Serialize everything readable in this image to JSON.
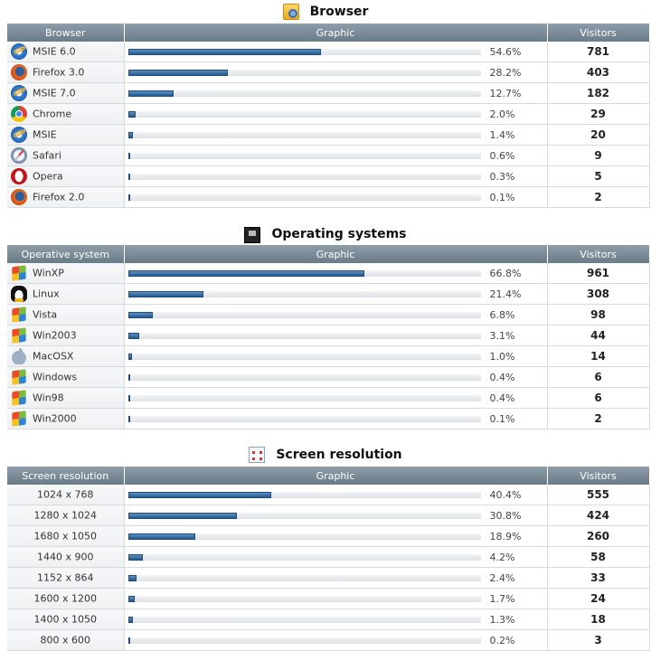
{
  "sections": {
    "browser": {
      "title": "Browser",
      "icon": "browser-icon",
      "headers": {
        "name": "Browser",
        "graphic": "Graphic",
        "visitors": "Visitors"
      },
      "rows": [
        {
          "name": "MSIE 6.0",
          "icon": "ie-icon",
          "percent": "54.6%",
          "visitors": "781",
          "fraction": 0.546
        },
        {
          "name": "Firefox 3.0",
          "icon": "firefox-icon",
          "percent": "28.2%",
          "visitors": "403",
          "fraction": 0.282
        },
        {
          "name": "MSIE 7.0",
          "icon": "ie-icon",
          "percent": "12.7%",
          "visitors": "182",
          "fraction": 0.127
        },
        {
          "name": "Chrome",
          "icon": "chrome-icon",
          "percent": "2.0%",
          "visitors": "29",
          "fraction": 0.02
        },
        {
          "name": "MSIE",
          "icon": "ie-icon",
          "percent": "1.4%",
          "visitors": "20",
          "fraction": 0.014
        },
        {
          "name": "Safari",
          "icon": "safari-icon",
          "percent": "0.6%",
          "visitors": "9",
          "fraction": 0.006
        },
        {
          "name": "Opera",
          "icon": "opera-icon",
          "percent": "0.3%",
          "visitors": "5",
          "fraction": 0.003
        },
        {
          "name": "Firefox 2.0",
          "icon": "firefox-icon",
          "percent": "0.1%",
          "visitors": "2",
          "fraction": 0.001
        }
      ]
    },
    "os": {
      "title": "Operating systems",
      "icon": "monitor-icon",
      "headers": {
        "name": "Operative system",
        "graphic": "Graphic",
        "visitors": "Visitors"
      },
      "rows": [
        {
          "name": "WinXP",
          "icon": "windows-icon",
          "percent": "66.8%",
          "visitors": "961",
          "fraction": 0.668
        },
        {
          "name": "Linux",
          "icon": "linux-icon",
          "percent": "21.4%",
          "visitors": "308",
          "fraction": 0.214
        },
        {
          "name": "Vista",
          "icon": "windows-icon",
          "percent": "6.8%",
          "visitors": "98",
          "fraction": 0.068
        },
        {
          "name": "Win2003",
          "icon": "windows-icon",
          "percent": "3.1%",
          "visitors": "44",
          "fraction": 0.031
        },
        {
          "name": "MacOSX",
          "icon": "apple-icon",
          "percent": "1.0%",
          "visitors": "14",
          "fraction": 0.01
        },
        {
          "name": "Windows",
          "icon": "windows-icon",
          "percent": "0.4%",
          "visitors": "6",
          "fraction": 0.004
        },
        {
          "name": "Win98",
          "icon": "windows-icon",
          "percent": "0.4%",
          "visitors": "6",
          "fraction": 0.004
        },
        {
          "name": "Win2000",
          "icon": "windows-icon",
          "percent": "0.1%",
          "visitors": "2",
          "fraction": 0.001
        }
      ]
    },
    "screen": {
      "title": "Screen resolution",
      "icon": "screen-resolution-icon",
      "headers": {
        "name": "Screen resolution",
        "graphic": "Graphic",
        "visitors": "Visitors"
      },
      "rows": [
        {
          "name": "1024 x 768",
          "percent": "40.4%",
          "visitors": "555",
          "fraction": 0.404
        },
        {
          "name": "1280 x 1024",
          "percent": "30.8%",
          "visitors": "424",
          "fraction": 0.308
        },
        {
          "name": "1680 x 1050",
          "percent": "18.9%",
          "visitors": "260",
          "fraction": 0.189
        },
        {
          "name": "1440 x 900",
          "percent": "4.2%",
          "visitors": "58",
          "fraction": 0.042
        },
        {
          "name": "1152 x 864",
          "percent": "2.4%",
          "visitors": "33",
          "fraction": 0.024
        },
        {
          "name": "1600 x 1200",
          "percent": "1.7%",
          "visitors": "24",
          "fraction": 0.017
        },
        {
          "name": "1400 x 1050",
          "percent": "1.3%",
          "visitors": "18",
          "fraction": 0.013
        },
        {
          "name": "800 x 600",
          "percent": "0.2%",
          "visitors": "3",
          "fraction": 0.002
        }
      ]
    }
  },
  "colors": {
    "bar": "#215a93",
    "header": "#7a8a96"
  }
}
